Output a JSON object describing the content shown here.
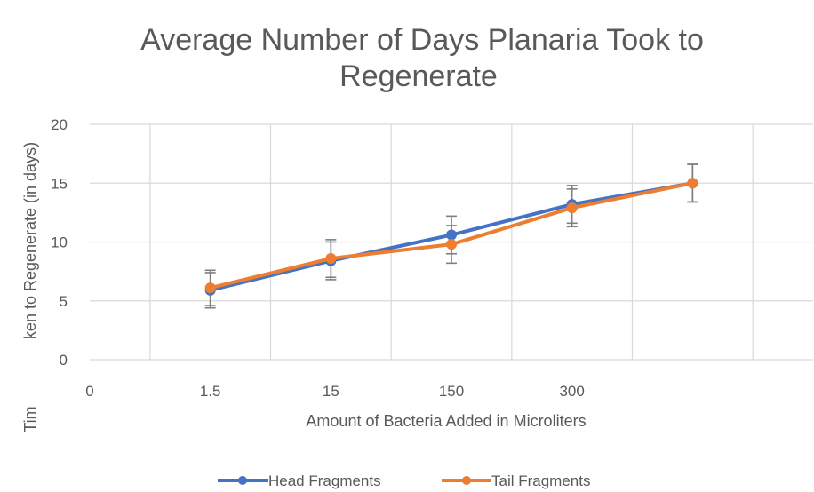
{
  "chart_data": {
    "type": "line",
    "title_line1": "Average Number of Days Planaria Took to",
    "title_line2": "Regenerate",
    "xlabel": "Amount of Bacteria Added in Microliters",
    "ylabel_visible": "ken to Regenerate (in days)",
    "ylabel_fragment": "Tim",
    "categories": [
      "0",
      "1.5",
      "15",
      "150",
      "300"
    ],
    "yticks": [
      "0",
      "5",
      "10",
      "15",
      "20"
    ],
    "ylim": [
      0,
      20
    ],
    "grid": true,
    "legend_position": "bottom",
    "series": [
      {
        "name": "Head Fragments",
        "color": "#4472C4",
        "x": [
          0.5,
          1.5,
          2.5,
          3.5,
          4.5
        ],
        "values": [
          5.9,
          8.4,
          10.6,
          13.2,
          15.0
        ],
        "error": [
          1.5,
          1.6,
          1.6,
          1.6,
          1.6
        ]
      },
      {
        "name": "Tail Fragments",
        "color": "#ED7D31",
        "x": [
          0.5,
          1.5,
          2.5,
          3.5,
          4.5
        ],
        "values": [
          6.1,
          8.6,
          9.8,
          12.9,
          15.0
        ],
        "error": [
          1.5,
          1.6,
          1.6,
          1.6,
          1.6
        ]
      }
    ]
  }
}
